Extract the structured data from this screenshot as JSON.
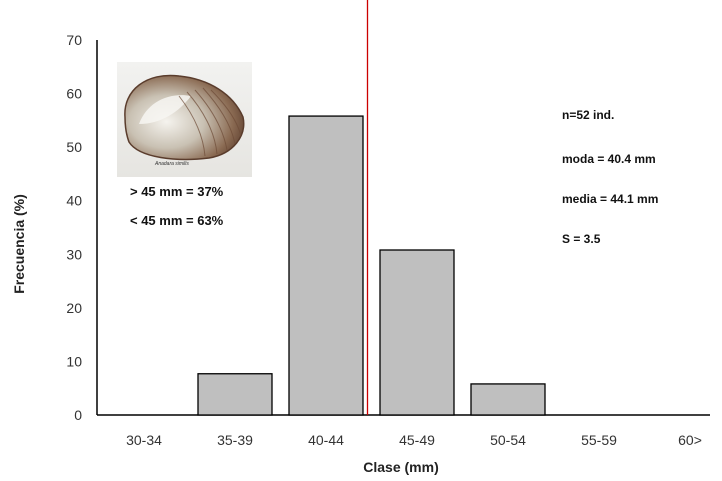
{
  "chart_data": {
    "type": "bar",
    "categories": [
      "30-34",
      "35-39",
      "40-44",
      "45-49",
      "50-54",
      "55-59",
      "60>"
    ],
    "values": [
      0,
      7.7,
      55.8,
      30.8,
      5.8,
      0,
      0
    ],
    "xlabel": "Clase (mm)",
    "ylabel": "Frecuencia (%)",
    "ylim": [
      0,
      70
    ],
    "yticks": [
      0,
      10,
      20,
      30,
      40,
      50,
      60,
      70
    ],
    "grid": false,
    "bar_color": "#bfbfbf",
    "bar_edge_color": "#000000",
    "reference_line": {
      "x": 45,
      "color": "#cc0000"
    },
    "annotations": {
      "stats": [
        "n=52 ind.",
        "moda = 40.4 mm",
        "media = 44.1 mm",
        "S = 3.5"
      ],
      "above": "> 45 mm = 37%",
      "below": "< 45 mm = 63%",
      "photo_caption": "Anadara similis"
    }
  }
}
